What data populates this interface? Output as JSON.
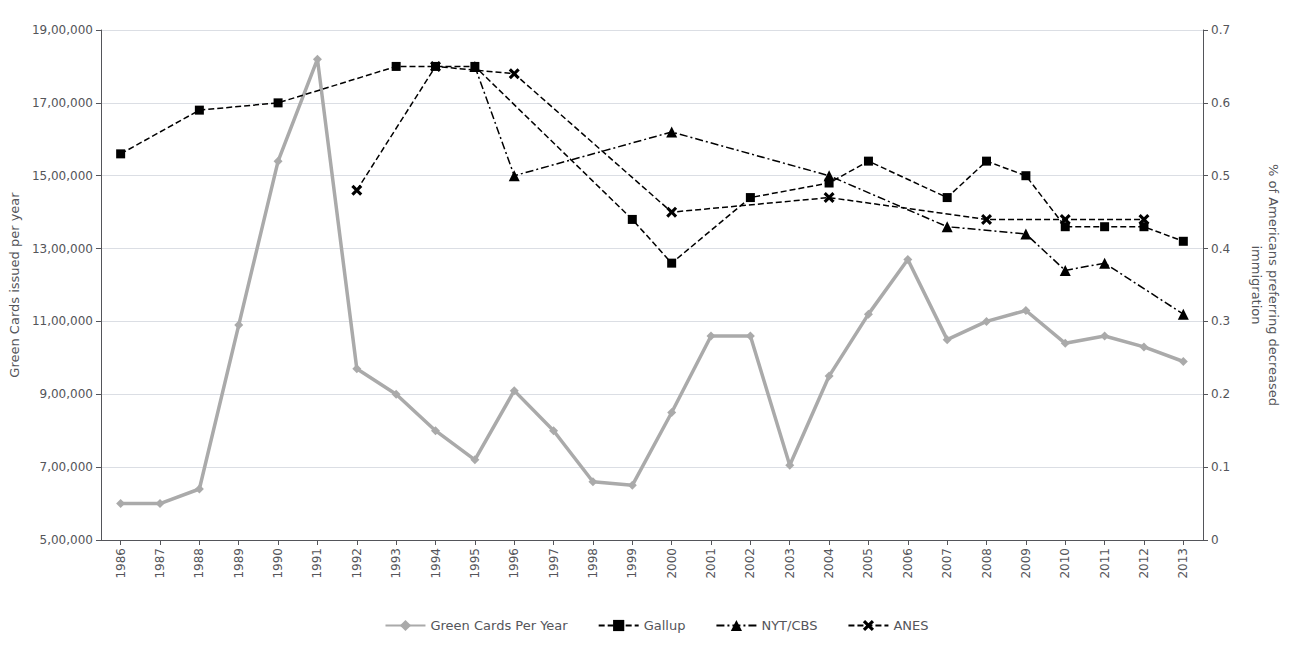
{
  "chart_data": {
    "type": "line",
    "xlim": [
      1985.5,
      2013.5
    ],
    "xticks": [
      1986,
      1987,
      1988,
      1989,
      1990,
      1991,
      1992,
      1993,
      1994,
      1995,
      1996,
      1997,
      1998,
      1999,
      2000,
      2001,
      2002,
      2003,
      2004,
      2005,
      2006,
      2007,
      2008,
      2009,
      2010,
      2011,
      2012,
      2013
    ],
    "ylabel": "Green Cards issued per year",
    "y2label": "% of Americans preferring decreased\nimmigration",
    "ylim": [
      500000,
      1900000
    ],
    "yticks": [
      {
        "value": 500000,
        "label": "5,00,000"
      },
      {
        "value": 700000,
        "label": "7,00,000"
      },
      {
        "value": 900000,
        "label": "9,00,000"
      },
      {
        "value": 1100000,
        "label": "11,00,000"
      },
      {
        "value": 1300000,
        "label": "13,00,000"
      },
      {
        "value": 1500000,
        "label": "15,00,000"
      },
      {
        "value": 1700000,
        "label": "17,00,000"
      },
      {
        "value": 1900000,
        "label": "19,00,000"
      }
    ],
    "y2lim": [
      0,
      0.7
    ],
    "y2ticks": [
      0,
      0.1,
      0.2,
      0.3,
      0.4,
      0.5,
      0.6,
      0.7
    ],
    "grid": true,
    "legend": "bottom",
    "series": [
      {
        "name": "Green Cards Per Year",
        "color": "#aaaaaa",
        "marker": "diamond",
        "line_style": "solid",
        "x": [
          1986,
          1987,
          1988,
          1989,
          1990,
          1991,
          1992,
          1993,
          1994,
          1995,
          1996,
          1997,
          1998,
          1999,
          2000,
          2001,
          2002,
          2003,
          2004,
          2005,
          2006,
          2007,
          2008,
          2009,
          2010,
          2011,
          2012,
          2013
        ],
        "values": [
          600000,
          600000,
          640000,
          1090000,
          1540000,
          1820000,
          970000,
          900000,
          800000,
          720000,
          910000,
          800000,
          660000,
          650000,
          850000,
          1060000,
          1060000,
          705000,
          950000,
          1120000,
          1270000,
          1050000,
          1100000,
          1130000,
          1040000,
          1060000,
          1030000,
          990000
        ]
      },
      {
        "name": "Gallup",
        "color": "#000000",
        "marker": "square",
        "line_style": "dashed",
        "axis": "y2",
        "x": [
          1986,
          1988,
          1990,
          1993,
          1994,
          1995,
          1999,
          2000,
          2002,
          2004,
          2005,
          2007,
          2008,
          2009,
          2010,
          2011,
          2012,
          2013
        ],
        "values": [
          0.53,
          0.59,
          0.6,
          0.65,
          0.65,
          0.65,
          0.44,
          0.38,
          0.47,
          0.49,
          0.52,
          0.47,
          0.52,
          0.5,
          0.43,
          0.43,
          0.43,
          0.41
        ]
      },
      {
        "name": "NYT/CBS",
        "color": "#000000",
        "marker": "triangle",
        "line_style": "dashdot",
        "axis": "y2",
        "x": [
          1995,
          1996,
          2000,
          2004,
          2007,
          2009,
          2010,
          2011,
          2013
        ],
        "values": [
          0.65,
          0.5,
          0.56,
          0.5,
          0.43,
          0.42,
          0.37,
          0.38,
          0.31
        ]
      },
      {
        "name": "ANES",
        "color": "#000000",
        "marker": "x",
        "line_style": "dashed",
        "axis": "y2",
        "x": [
          1992,
          1994,
          1996,
          2000,
          2004,
          2008,
          2010,
          2012
        ],
        "values": [
          0.48,
          0.65,
          0.64,
          0.45,
          0.47,
          0.44,
          0.44,
          0.44
        ]
      }
    ]
  }
}
